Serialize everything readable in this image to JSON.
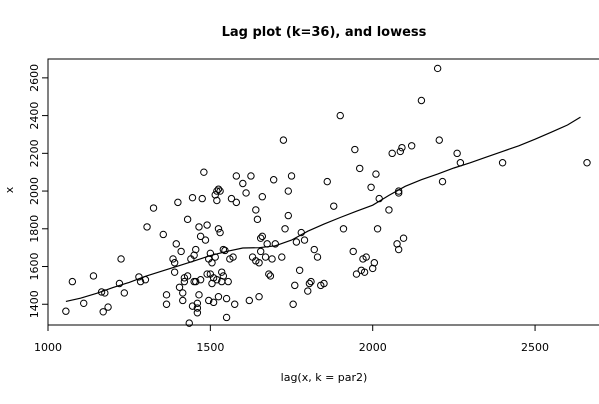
{
  "chart_data": {
    "type": "scatter",
    "title": "Lag plot (k=36), and lowess",
    "xlabel": "lag(x, k = par2)",
    "ylabel": "x",
    "xlim": [
      1000,
      2700
    ],
    "ylim": [
      1290,
      2700
    ],
    "xticks": [
      "1000",
      "1500",
      "2000",
      "2500"
    ],
    "yticks": [
      "1400",
      "1600",
      "1800",
      "2000",
      "2200",
      "2400",
      "2600"
    ],
    "grid": false,
    "legend": "none",
    "colors": {
      "points": "#000000",
      "line": "#000000"
    },
    "points": [
      [
        1055,
        1363
      ],
      [
        1075,
        1520
      ],
      [
        1110,
        1405
      ],
      [
        1140,
        1550
      ],
      [
        1165,
        1465
      ],
      [
        1170,
        1360
      ],
      [
        1175,
        1460
      ],
      [
        1185,
        1385
      ],
      [
        1220,
        1510
      ],
      [
        1225,
        1640
      ],
      [
        1235,
        1460
      ],
      [
        1280,
        1545
      ],
      [
        1285,
        1520
      ],
      [
        1300,
        1530
      ],
      [
        1305,
        1810
      ],
      [
        1325,
        1910
      ],
      [
        1355,
        1770
      ],
      [
        1365,
        1450
      ],
      [
        1365,
        1400
      ],
      [
        1385,
        1640
      ],
      [
        1390,
        1620
      ],
      [
        1390,
        1570
      ],
      [
        1395,
        1720
      ],
      [
        1400,
        1940
      ],
      [
        1405,
        1490
      ],
      [
        1410,
        1680
      ],
      [
        1415,
        1460
      ],
      [
        1415,
        1420
      ],
      [
        1420,
        1540
      ],
      [
        1420,
        1520
      ],
      [
        1430,
        1850
      ],
      [
        1430,
        1550
      ],
      [
        1435,
        1300
      ],
      [
        1440,
        1640
      ],
      [
        1445,
        1965
      ],
      [
        1445,
        1390
      ],
      [
        1450,
        1520
      ],
      [
        1450,
        1660
      ],
      [
        1455,
        1690
      ],
      [
        1455,
        1520
      ],
      [
        1460,
        1405
      ],
      [
        1460,
        1380
      ],
      [
        1460,
        1355
      ],
      [
        1465,
        1810
      ],
      [
        1465,
        1450
      ],
      [
        1470,
        1760
      ],
      [
        1470,
        1530
      ],
      [
        1475,
        1960
      ],
      [
        1480,
        2100
      ],
      [
        1485,
        1740
      ],
      [
        1490,
        1820
      ],
      [
        1490,
        1560
      ],
      [
        1495,
        1420
      ],
      [
        1495,
        1640
      ],
      [
        1500,
        1670
      ],
      [
        1500,
        1560
      ],
      [
        1505,
        1620
      ],
      [
        1505,
        1510
      ],
      [
        1510,
        1540
      ],
      [
        1510,
        1410
      ],
      [
        1515,
        1650
      ],
      [
        1515,
        1980
      ],
      [
        1520,
        2000
      ],
      [
        1520,
        1950
      ],
      [
        1520,
        1530
      ],
      [
        1525,
        2010
      ],
      [
        1525,
        1800
      ],
      [
        1525,
        1440
      ],
      [
        1530,
        2000
      ],
      [
        1530,
        1780
      ],
      [
        1535,
        1570
      ],
      [
        1535,
        1520
      ],
      [
        1540,
        1690
      ],
      [
        1540,
        1550
      ],
      [
        1545,
        1685
      ],
      [
        1550,
        1430
      ],
      [
        1550,
        1330
      ],
      [
        1555,
        1520
      ],
      [
        1560,
        1640
      ],
      [
        1565,
        1960
      ],
      [
        1570,
        1650
      ],
      [
        1575,
        1400
      ],
      [
        1580,
        1940
      ],
      [
        1580,
        2080
      ],
      [
        1600,
        2040
      ],
      [
        1610,
        1990
      ],
      [
        1620,
        1420
      ],
      [
        1625,
        2080
      ],
      [
        1630,
        1650
      ],
      [
        1640,
        1630
      ],
      [
        1640,
        1900
      ],
      [
        1645,
        1850
      ],
      [
        1650,
        1620
      ],
      [
        1650,
        1440
      ],
      [
        1655,
        1750
      ],
      [
        1655,
        1680
      ],
      [
        1660,
        1760
      ],
      [
        1660,
        1970
      ],
      [
        1670,
        1650
      ],
      [
        1675,
        1720
      ],
      [
        1680,
        1560
      ],
      [
        1685,
        1550
      ],
      [
        1690,
        1640
      ],
      [
        1695,
        2060
      ],
      [
        1700,
        1720
      ],
      [
        1720,
        1650
      ],
      [
        1725,
        2270
      ],
      [
        1730,
        1800
      ],
      [
        1740,
        1870
      ],
      [
        1740,
        2000
      ],
      [
        1750,
        2080
      ],
      [
        1755,
        1400
      ],
      [
        1760,
        1500
      ],
      [
        1765,
        1730
      ],
      [
        1775,
        1580
      ],
      [
        1780,
        1780
      ],
      [
        1790,
        1740
      ],
      [
        1800,
        1470
      ],
      [
        1805,
        1510
      ],
      [
        1810,
        1520
      ],
      [
        1820,
        1690
      ],
      [
        1830,
        1650
      ],
      [
        1840,
        1500
      ],
      [
        1850,
        1510
      ],
      [
        1860,
        2050
      ],
      [
        1880,
        1920
      ],
      [
        1900,
        2400
      ],
      [
        1910,
        1800
      ],
      [
        1940,
        1680
      ],
      [
        1945,
        2220
      ],
      [
        1950,
        1560
      ],
      [
        1960,
        2120
      ],
      [
        1965,
        1580
      ],
      [
        1970,
        1640
      ],
      [
        1975,
        1570
      ],
      [
        1980,
        1650
      ],
      [
        1995,
        2020
      ],
      [
        2000,
        1590
      ],
      [
        2005,
        1620
      ],
      [
        2010,
        2090
      ],
      [
        2015,
        1800
      ],
      [
        2020,
        1960
      ],
      [
        2050,
        1900
      ],
      [
        2060,
        2200
      ],
      [
        2075,
        1720
      ],
      [
        2080,
        2000
      ],
      [
        2080,
        1990
      ],
      [
        2080,
        1690
      ],
      [
        2085,
        2210
      ],
      [
        2090,
        2230
      ],
      [
        2095,
        1750
      ],
      [
        2120,
        2240
      ],
      [
        2150,
        2480
      ],
      [
        2200,
        2650
      ],
      [
        2205,
        2270
      ],
      [
        2215,
        2050
      ],
      [
        2260,
        2200
      ],
      [
        2270,
        2150
      ],
      [
        2400,
        2150
      ],
      [
        2660,
        2150
      ]
    ],
    "lowess": [
      [
        1055,
        1415
      ],
      [
        1100,
        1432
      ],
      [
        1150,
        1458
      ],
      [
        1200,
        1488
      ],
      [
        1250,
        1516
      ],
      [
        1300,
        1548
      ],
      [
        1350,
        1575
      ],
      [
        1400,
        1602
      ],
      [
        1450,
        1630
      ],
      [
        1500,
        1658
      ],
      [
        1550,
        1680
      ],
      [
        1600,
        1698
      ],
      [
        1650,
        1700
      ],
      [
        1700,
        1710
      ],
      [
        1750,
        1740
      ],
      [
        1800,
        1787
      ],
      [
        1850,
        1825
      ],
      [
        1900,
        1860
      ],
      [
        1950,
        1893
      ],
      [
        2000,
        1925
      ],
      [
        2050,
        1977
      ],
      [
        2100,
        2025
      ],
      [
        2150,
        2060
      ],
      [
        2200,
        2090
      ],
      [
        2250,
        2122
      ],
      [
        2300,
        2150
      ],
      [
        2350,
        2180
      ],
      [
        2400,
        2210
      ],
      [
        2450,
        2240
      ],
      [
        2500,
        2275
      ],
      [
        2550,
        2312
      ],
      [
        2600,
        2350
      ],
      [
        2640,
        2392
      ]
    ]
  }
}
